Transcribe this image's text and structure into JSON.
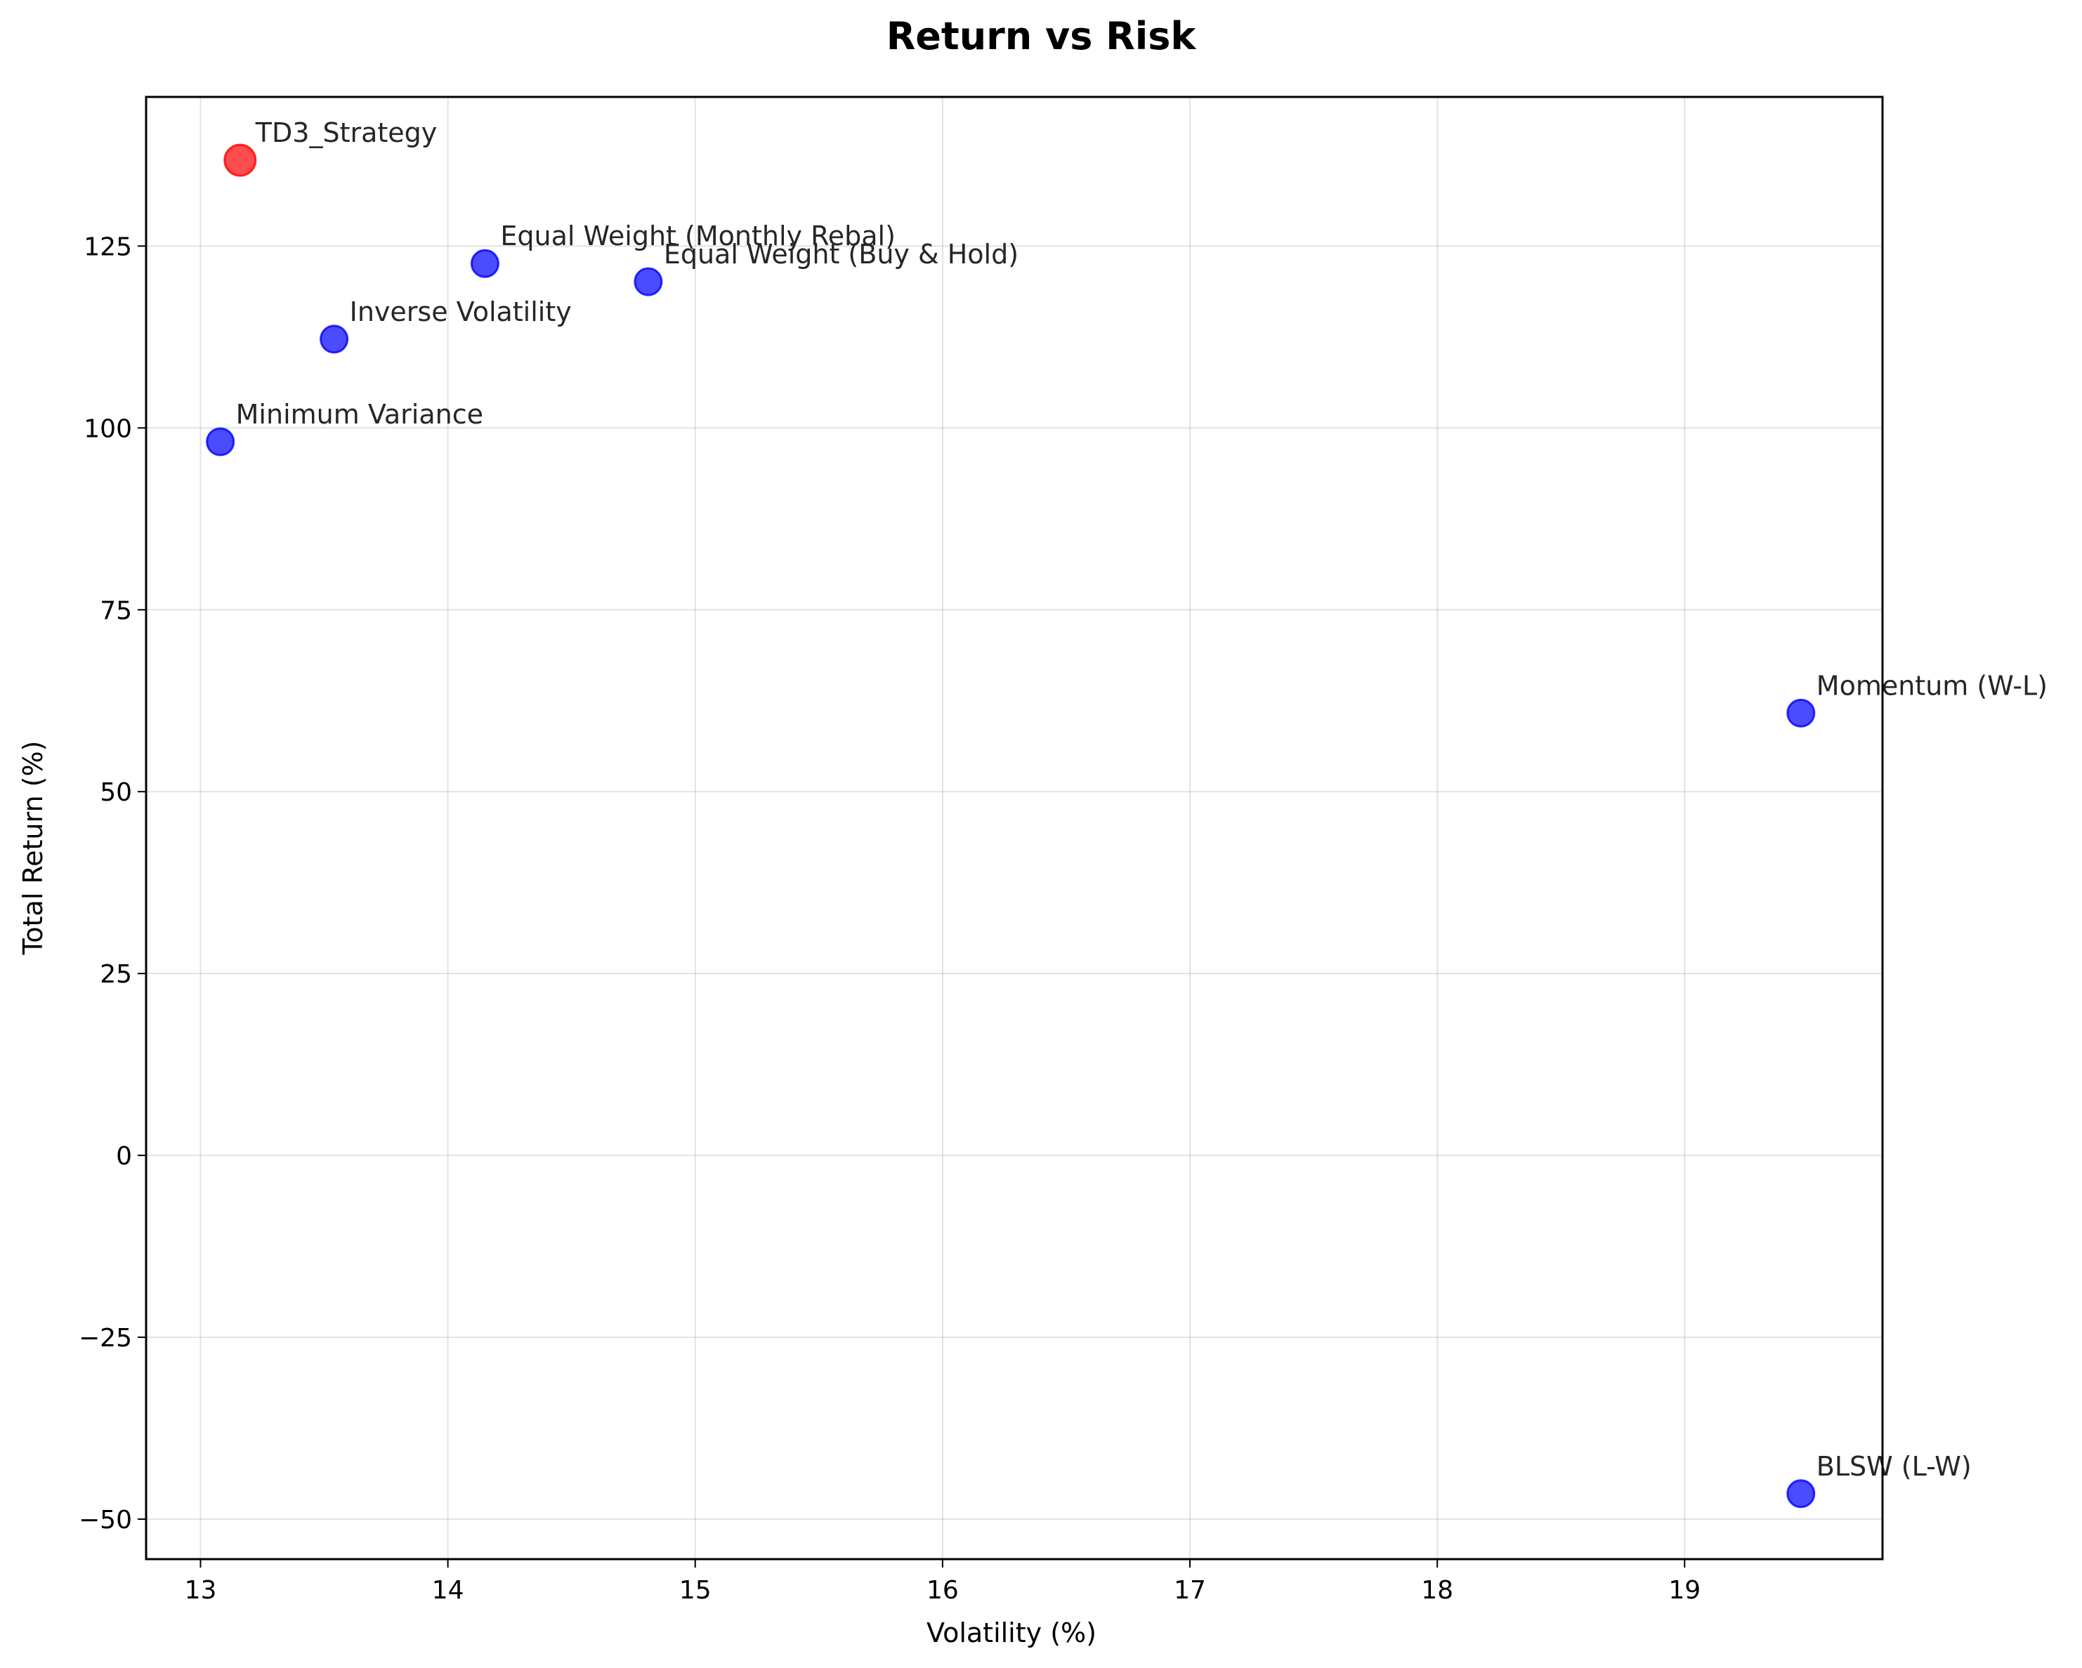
{
  "chart_data": {
    "type": "scatter",
    "title": "Return vs Risk",
    "xlabel": "Volatility (%)",
    "ylabel": "Total Return (%)",
    "xlim": [
      12.78,
      19.8
    ],
    "ylim": [
      -55.5,
      145.5
    ],
    "xticks": [
      13,
      14,
      15,
      16,
      17,
      18,
      19
    ],
    "yticks": [
      -50,
      -25,
      0,
      25,
      50,
      75,
      100,
      125
    ],
    "ytick_labels": [
      "−50",
      "−25",
      "0",
      "25",
      "50",
      "75",
      "100",
      "125"
    ],
    "grid": true,
    "points": [
      {
        "label": "TD3_Strategy",
        "x": 13.16,
        "y": 136.8,
        "color": "#ff0000",
        "highlight": true
      },
      {
        "label": "Equal Weight (Monthly Rebal)",
        "x": 14.15,
        "y": 122.6,
        "color": "#0000ff",
        "highlight": false
      },
      {
        "label": "Equal Weight (Buy & Hold)",
        "x": 14.81,
        "y": 120.1,
        "color": "#0000ff",
        "highlight": false
      },
      {
        "label": "Inverse Volatility",
        "x": 13.54,
        "y": 112.2,
        "color": "#0000ff",
        "highlight": false
      },
      {
        "label": "Minimum Variance",
        "x": 13.08,
        "y": 98.1,
        "color": "#0000ff",
        "highlight": false
      },
      {
        "label": "Momentum (W-L)",
        "x": 19.47,
        "y": 60.8,
        "color": "#0000ff",
        "highlight": false
      },
      {
        "label": "BLSW (L-W)",
        "x": 19.47,
        "y": -46.5,
        "color": "#0000ff",
        "highlight": false
      }
    ]
  }
}
